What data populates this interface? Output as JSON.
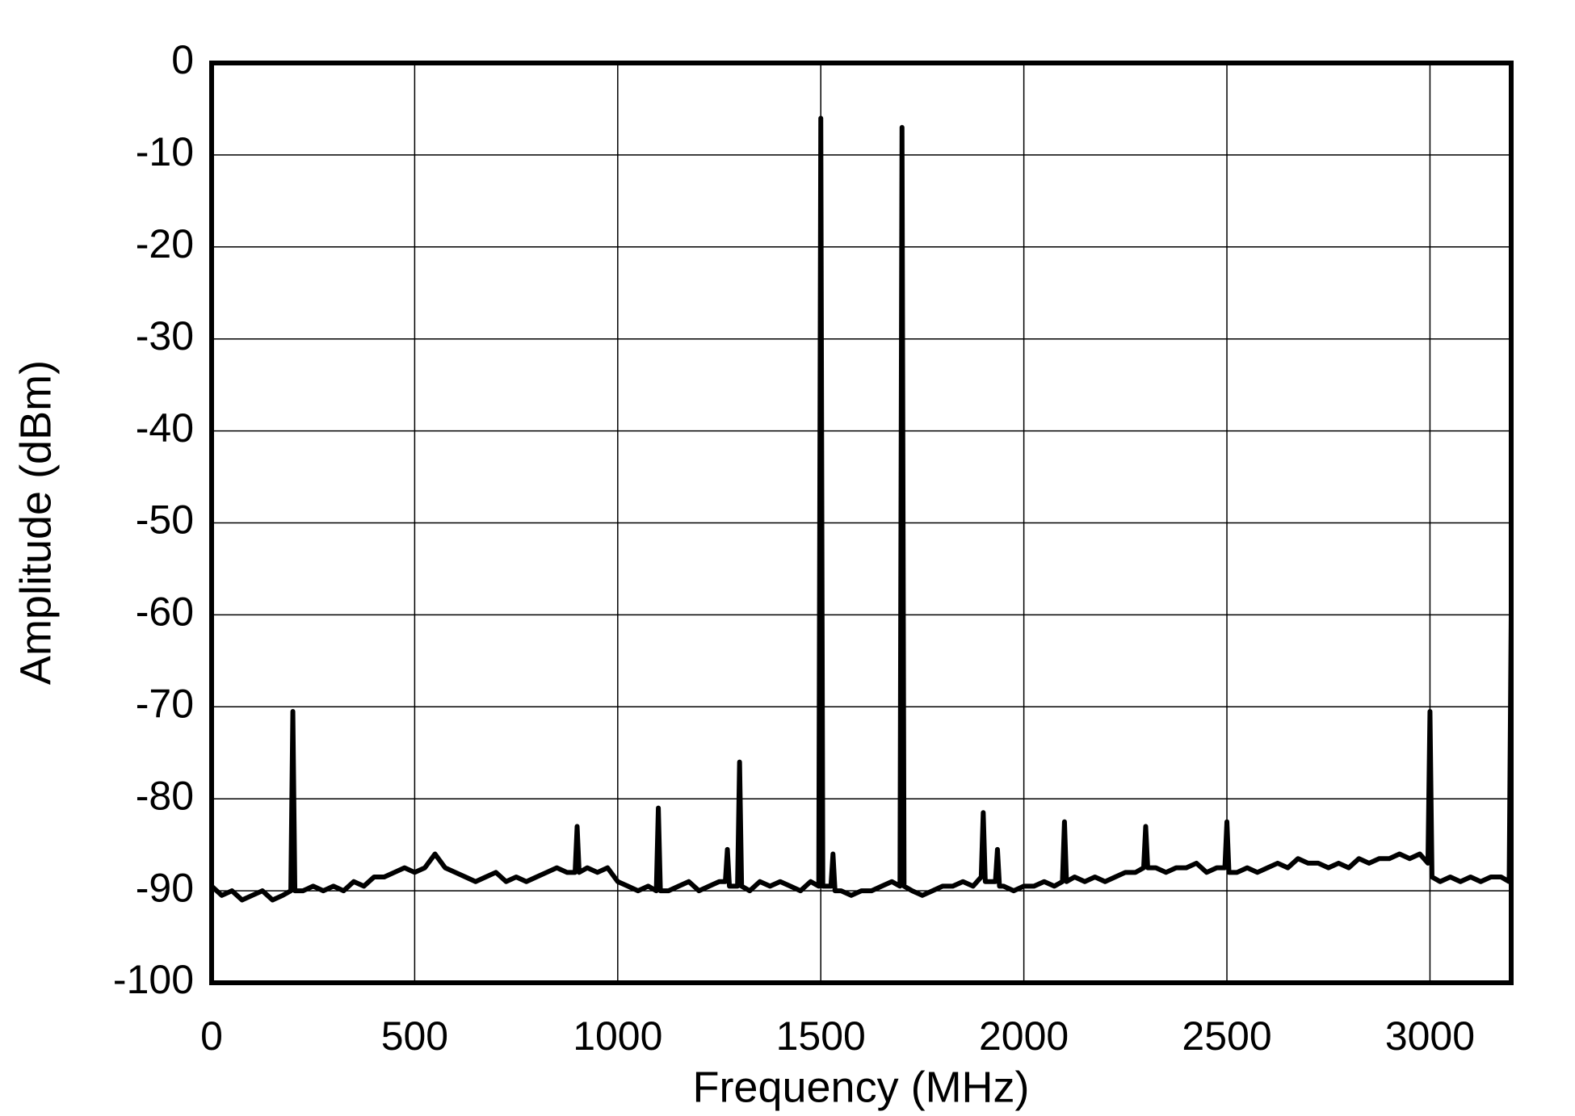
{
  "chart_data": {
    "type": "line",
    "x_label": "Frequency (MHz)",
    "y_label": "Amplitude (dBm)",
    "xlim": [
      0,
      3200
    ],
    "xticks": [
      0,
      500,
      1000,
      1500,
      2000,
      2500,
      3000
    ],
    "ylim": [
      -100,
      0
    ],
    "yticks": [
      -100,
      -90,
      -80,
      -70,
      -60,
      -50,
      -40,
      -30,
      -20,
      -10,
      0
    ],
    "grid": true,
    "x": [
      0,
      25,
      50,
      75,
      100,
      125,
      150,
      175,
      195,
      200,
      205,
      225,
      250,
      275,
      300,
      325,
      350,
      375,
      400,
      425,
      450,
      475,
      500,
      525,
      550,
      575,
      600,
      625,
      650,
      675,
      700,
      725,
      750,
      775,
      800,
      825,
      850,
      875,
      895,
      900,
      905,
      925,
      950,
      975,
      1000,
      1025,
      1050,
      1075,
      1095,
      1100,
      1105,
      1125,
      1150,
      1175,
      1200,
      1225,
      1250,
      1265,
      1270,
      1275,
      1295,
      1300,
      1305,
      1325,
      1350,
      1375,
      1400,
      1425,
      1450,
      1475,
      1495,
      1500,
      1505,
      1525,
      1530,
      1535,
      1550,
      1575,
      1600,
      1625,
      1650,
      1675,
      1695,
      1700,
      1705,
      1725,
      1750,
      1775,
      1800,
      1825,
      1850,
      1875,
      1895,
      1900,
      1905,
      1930,
      1935,
      1940,
      1950,
      1975,
      2000,
      2025,
      2050,
      2075,
      2095,
      2100,
      2105,
      2125,
      2150,
      2175,
      2200,
      2225,
      2250,
      2275,
      2295,
      2300,
      2305,
      2325,
      2350,
      2375,
      2400,
      2425,
      2450,
      2475,
      2495,
      2500,
      2505,
      2525,
      2550,
      2575,
      2600,
      2625,
      2650,
      2675,
      2700,
      2725,
      2750,
      2775,
      2800,
      2825,
      2850,
      2875,
      2900,
      2925,
      2950,
      2975,
      2995,
      3000,
      3005,
      3025,
      3050,
      3075,
      3100,
      3125,
      3150,
      3175,
      3195,
      3200
    ],
    "series": [
      {
        "color": "#000000",
        "values": [
          -89.5,
          -90.5,
          -90,
          -91,
          -90.5,
          -90,
          -91,
          -90.5,
          -90,
          -70.5,
          -90,
          -90,
          -89.5,
          -90,
          -89.5,
          -90,
          -89,
          -89.5,
          -88.5,
          -88.5,
          -88,
          -87.5,
          -88,
          -87.5,
          -86,
          -87.5,
          -88,
          -88.5,
          -89,
          -88.5,
          -88,
          -89,
          -88.5,
          -89,
          -88.5,
          -88,
          -87.5,
          -88,
          -88,
          -83,
          -88,
          -87.5,
          -88,
          -87.5,
          -89,
          -89.5,
          -90,
          -89.5,
          -90,
          -81,
          -90,
          -90,
          -89.5,
          -89,
          -90,
          -89.5,
          -89,
          -89,
          -85.5,
          -89.5,
          -89.5,
          -76,
          -89.5,
          -90,
          -89,
          -89.5,
          -89,
          -89.5,
          -90,
          -89,
          -89.5,
          -6,
          -89.5,
          -89.5,
          -86,
          -90,
          -90,
          -90.5,
          -90,
          -90,
          -89.5,
          -89,
          -89.5,
          -7,
          -89.5,
          -90,
          -90.5,
          -90,
          -89.5,
          -89.5,
          -89,
          -89.5,
          -88.5,
          -81.5,
          -89,
          -89,
          -85.5,
          -89.5,
          -89.5,
          -90,
          -89.5,
          -89.5,
          -89,
          -89.5,
          -89,
          -82.5,
          -89,
          -88.5,
          -89,
          -88.5,
          -89,
          -88.5,
          -88,
          -88,
          -87.5,
          -83,
          -87.5,
          -87.5,
          -88,
          -87.5,
          -87.5,
          -87,
          -88,
          -87.5,
          -87.5,
          -82.5,
          -88,
          -88,
          -87.5,
          -88,
          -87.5,
          -87,
          -87.5,
          -86.5,
          -87,
          -87,
          -87.5,
          -87,
          -87.5,
          -86.5,
          -87,
          -86.5,
          -86.5,
          -86,
          -86.5,
          -86,
          -87,
          -70.5,
          -88.5,
          -89,
          -88.5,
          -89,
          -88.5,
          -89,
          -88.5,
          -88.5,
          -89,
          -60
        ]
      }
    ]
  }
}
